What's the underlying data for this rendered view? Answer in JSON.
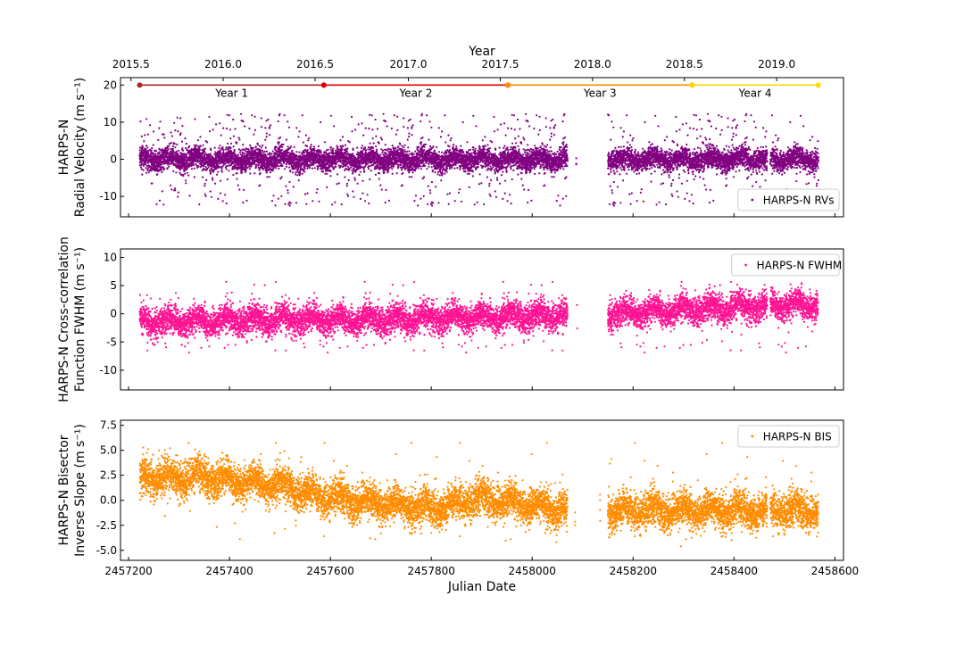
{
  "chart_data": [
    {
      "id": "rv",
      "type": "scatter",
      "top_axis": {
        "label": "Year",
        "ticks": [
          "2015.5",
          "2016.0",
          "2016.5",
          "2017.0",
          "2017.5",
          "2018.0",
          "2018.5",
          "2019.0"
        ],
        "tick_jd": [
          2457204.75,
          2457387.5,
          2457569.75,
          2457754.5,
          2457936.75,
          2458119.5,
          2458301.75,
          2458484.5
        ]
      },
      "year_bands": [
        {
          "label": "Year 1",
          "start_jd": 2457222,
          "end_jd": 2457587,
          "color": "#b22222"
        },
        {
          "label": "Year 2",
          "start_jd": 2457587,
          "end_jd": 2457952,
          "color": "#e00000"
        },
        {
          "label": "Year 3",
          "start_jd": 2457952,
          "end_jd": 2458317,
          "color": "#ff8c00"
        },
        {
          "label": "Year 4",
          "start_jd": 2458317,
          "end_jd": 2458567,
          "color": "#ffd700"
        }
      ],
      "year_band_value": 20,
      "ylabel_lines": [
        "HARPS-N",
        "Radial Velocity (m s⁻¹)"
      ],
      "ylim": [
        -15.5,
        22
      ],
      "yticks": [
        -10,
        0,
        10,
        20
      ],
      "legend": {
        "label": "HARPS-N RVs",
        "placement": "lower-right"
      },
      "color": "#800080",
      "series": {
        "noise_sd": 1.4,
        "outlier_rate": 0.08,
        "outlier_range": [
          -12.5,
          12.5
        ],
        "trend": [
          [
            2457220,
            0
          ],
          [
            2458570,
            0
          ]
        ]
      }
    },
    {
      "id": "fwhm",
      "type": "scatter",
      "ylabel_lines": [
        "HARPS-N Cross-correlation",
        "Function FWHM (m s⁻¹)"
      ],
      "ylim": [
        -13.5,
        11.5
      ],
      "yticks": [
        -10,
        -5,
        0,
        5,
        10
      ],
      "legend": {
        "label": "HARPS-N FWHM",
        "placement": "upper-right"
      },
      "color": "#ff1493",
      "series": {
        "noise_sd": 1.2,
        "outlier_rate": 0.02,
        "outlier_range": [
          -7,
          6
        ],
        "trend": [
          [
            2457220,
            -1.5
          ],
          [
            2457450,
            -1
          ],
          [
            2457700,
            -1
          ],
          [
            2458000,
            -0.3
          ],
          [
            2458160,
            0
          ],
          [
            2458300,
            0.8
          ],
          [
            2458567,
            1.8
          ]
        ]
      }
    },
    {
      "id": "bis",
      "type": "scatter",
      "xlabel": "Julian Date",
      "xticks": [
        2457200,
        2457400,
        2457600,
        2457800,
        2458000,
        2458200,
        2458400,
        2458600
      ],
      "xlim": [
        2457184,
        2458617
      ],
      "ylabel_lines": [
        "HARPS-N Bisector",
        "Inverse Slope (m s⁻¹)"
      ],
      "ylim": [
        -6,
        8
      ],
      "yticks": [
        -5.0,
        -2.5,
        0.0,
        2.5,
        5.0,
        7.5
      ],
      "legend": {
        "label": "HARPS-N BIS",
        "placement": "upper-right"
      },
      "color": "#ff8c00",
      "series": {
        "noise_sd": 0.85,
        "outlier_rate": 0.01,
        "outlier_range": [
          -4,
          6
        ],
        "trend": [
          [
            2457220,
            2.2
          ],
          [
            2457350,
            2.3
          ],
          [
            2457500,
            1.5
          ],
          [
            2457600,
            0.2
          ],
          [
            2457800,
            -0.8
          ],
          [
            2457900,
            0.2
          ],
          [
            2458070,
            -1
          ],
          [
            2458567,
            -1
          ]
        ]
      }
    }
  ],
  "observation_windows": [
    [
      2457222,
      2458070,
      1.0
    ],
    [
      2458085,
      2458090,
      0.08
    ],
    [
      2458133,
      2458136,
      0.08
    ],
    [
      2458150,
      2458466,
      1.0
    ],
    [
      2458472,
      2458567,
      1.0
    ]
  ]
}
